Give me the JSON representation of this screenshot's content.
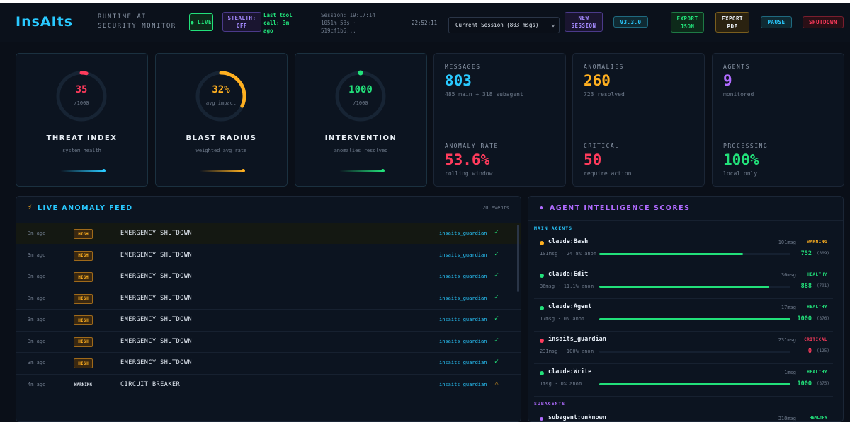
{
  "header": {
    "logo": "InsAIts",
    "subtitle_line1": "RUNTIME AI",
    "subtitle_line2": "SECURITY MONITOR",
    "live_label": "● LIVE",
    "stealth_label": "STEALTH:\nOFF",
    "last_call": "Last tool\ncall: 3m\nago",
    "session_info": "Session: 19:17:14 ·\n1051m 53s ·\n519cf1b5...",
    "clock": "22:52:11",
    "session_select": "Current Session (803 msgs)",
    "new_session_label": "NEW\nSESSION",
    "version": "V3.3.0",
    "export_json": "EXPORT\nJSON",
    "export_pdf": "EXPORT\nPDF",
    "pause": "PAUSE",
    "shutdown": "SHUTDOWN"
  },
  "gauges": [
    {
      "value": "35",
      "sub": "/1000",
      "title": "THREAT INDEX",
      "desc": "system health",
      "color": "#ff3b5c",
      "level": 0.035
    },
    {
      "value": "32%",
      "sub": "avg impact",
      "title": "BLAST RADIUS",
      "desc": "weighted avg rate",
      "color": "#ffb020",
      "level": 0.32
    },
    {
      "value": "1000",
      "sub": "/1000",
      "title": "INTERVENTION",
      "desc": "anomalies resolved",
      "color": "#22e07a",
      "level": 1.0
    }
  ],
  "stats": {
    "messages": {
      "label": "MESSAGES",
      "value": "803",
      "sub": "485 main + 318 subagent",
      "color": "#29c9ff"
    },
    "anomalies": {
      "label": "ANOMALIES",
      "value": "260",
      "sub": "723 resolved",
      "color": "#ffb020"
    },
    "agents": {
      "label": "AGENTS",
      "value": "9",
      "sub": "monitored",
      "color": "#b06bff"
    },
    "anomaly_rate": {
      "label": "ANOMALY RATE",
      "value": "53.6%",
      "sub": "rolling window",
      "color": "#ff3b5c"
    },
    "critical": {
      "label": "CRITICAL",
      "value": "50",
      "sub": "require action",
      "color": "#ff3b5c"
    },
    "processing": {
      "label": "PROCESSING",
      "value": "100%",
      "sub": "local only",
      "color": "#22e07a"
    }
  },
  "feed": {
    "icon": "⚡",
    "title": "LIVE ANOMALY FEED",
    "count": "20 events",
    "rows": [
      {
        "time": "3m ago",
        "severity": "HIGH",
        "event": "EMERGENCY SHUTDOWN",
        "source": "insaits_guardian",
        "status": "✓"
      },
      {
        "time": "3m ago",
        "severity": "HIGH",
        "event": "EMERGENCY SHUTDOWN",
        "source": "insaits_guardian",
        "status": "✓"
      },
      {
        "time": "3m ago",
        "severity": "HIGH",
        "event": "EMERGENCY SHUTDOWN",
        "source": "insaits_guardian",
        "status": "✓"
      },
      {
        "time": "3m ago",
        "severity": "HIGH",
        "event": "EMERGENCY SHUTDOWN",
        "source": "insaits_guardian",
        "status": "✓"
      },
      {
        "time": "3m ago",
        "severity": "HIGH",
        "event": "EMERGENCY SHUTDOWN",
        "source": "insaits_guardian",
        "status": "✓"
      },
      {
        "time": "3m ago",
        "severity": "HIGH",
        "event": "EMERGENCY SHUTDOWN",
        "source": "insaits_guardian",
        "status": "✓"
      },
      {
        "time": "3m ago",
        "severity": "HIGH",
        "event": "EMERGENCY SHUTDOWN",
        "source": "insaits_guardian",
        "status": "✓"
      },
      {
        "time": "4m ago",
        "severity": "WARNING",
        "event": "CIRCUIT BREAKER",
        "source": "insaits_guardian",
        "status": "⚠"
      }
    ]
  },
  "agents_panel": {
    "icon": "◆",
    "title": "AGENT INTELLIGENCE SCORES",
    "main_label": "MAIN AGENTS",
    "sub_label": "SUBAGENTS",
    "agents": [
      {
        "name": "claude:Bash",
        "msgs": "101msg",
        "status": "WARNING",
        "meta": "101msg · 24.8% anom",
        "score": "752",
        "hist": "(809)",
        "color": "#ffb020",
        "fill": 0.752
      },
      {
        "name": "claude:Edit",
        "msgs": "36msg",
        "status": "HEALTHY",
        "meta": "36msg · 11.1% anom",
        "score": "888",
        "hist": "(791)",
        "color": "#22e07a",
        "fill": 0.888
      },
      {
        "name": "claude:Agent",
        "msgs": "17msg",
        "status": "HEALTHY",
        "meta": "17msg · 0% anom",
        "score": "1000",
        "hist": "(876)",
        "color": "#22e07a",
        "fill": 1.0
      },
      {
        "name": "insaits_guardian",
        "msgs": "231msg",
        "status": "CRITICAL",
        "meta": "231msg · 100% anom",
        "score": "0",
        "hist": "(125)",
        "color": "#ff3b5c",
        "fill": 0.0
      },
      {
        "name": "claude:Write",
        "msgs": "1msg",
        "status": "HEALTHY",
        "meta": "1msg · 0% anom",
        "score": "1000",
        "hist": "(875)",
        "color": "#22e07a",
        "fill": 1.0
      }
    ],
    "subagent": {
      "name": "subagent:unknown",
      "msgs": "318msg",
      "status": "HEALTHY"
    }
  }
}
